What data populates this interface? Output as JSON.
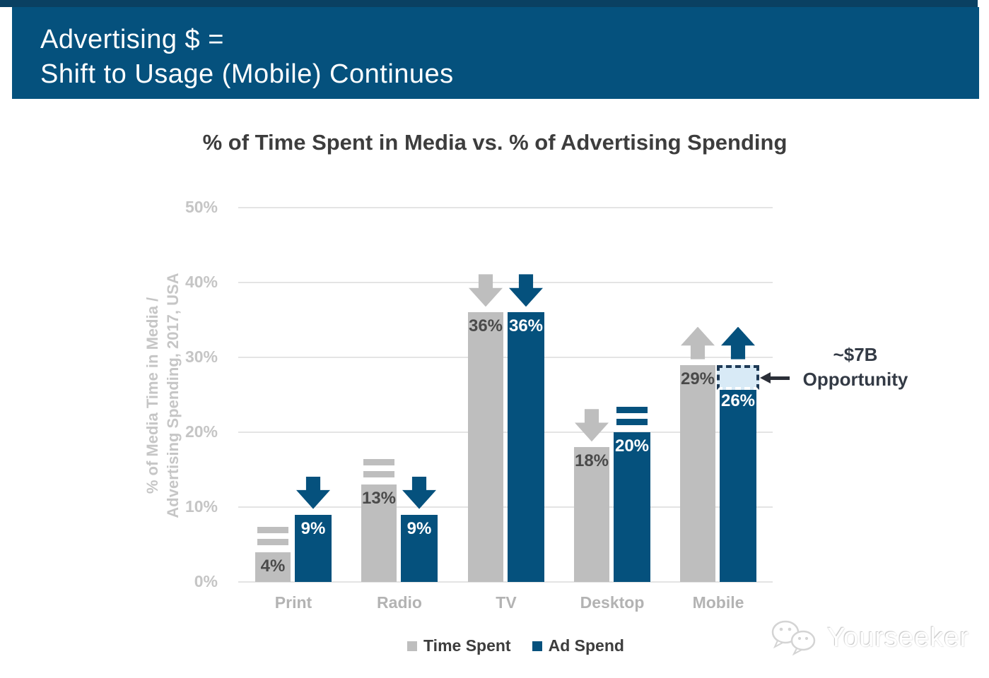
{
  "header": {
    "line1": "Advertising $ =",
    "line2": "Shift to Usage (Mobile) Continues"
  },
  "colors": {
    "header_blue": "#05517d",
    "header_top_strip": "#0a4062",
    "bar_gray": "#bebebe",
    "bar_blue": "#05517d",
    "opportunity_fill": "#d8eaf6",
    "opportunity_border": "#1e3a56",
    "gridline": "#e4e4e4"
  },
  "chart_data": {
    "type": "bar",
    "title": "% of Time Spent in Media vs. % of Advertising Spending",
    "categories": [
      "Print",
      "Radio",
      "TV",
      "Desktop",
      "Mobile"
    ],
    "series": [
      {
        "name": "Time Spent",
        "color_key": "bar_gray",
        "values": [
          4,
          13,
          36,
          18,
          29
        ],
        "trend_indicators": [
          "equal",
          "equal",
          "down",
          "down",
          "up"
        ]
      },
      {
        "name": "Ad Spend",
        "color_key": "bar_blue",
        "values": [
          9,
          9,
          36,
          20,
          26
        ],
        "trend_indicators": [
          "down",
          "down",
          "down",
          "equal",
          "up"
        ]
      }
    ],
    "value_suffix": "%",
    "ylabel_lines": [
      "% of Media Time in Media /",
      "Advertising Spending, 2017, USA"
    ],
    "yticks": [
      "0%",
      "10%",
      "20%",
      "30%",
      "40%",
      "50%"
    ],
    "ylim": [
      0,
      50
    ],
    "grid": "horizontal",
    "legend_position": "bottom",
    "annotation": {
      "lines": [
        "~$7B",
        "Opportunity"
      ],
      "target_category": "Mobile",
      "target_series": "Ad Spend",
      "gap_from": 26,
      "gap_to": 29
    }
  },
  "watermark": {
    "text": "Yourseeker",
    "icon": "wechat-chat-bubbles-icon"
  }
}
